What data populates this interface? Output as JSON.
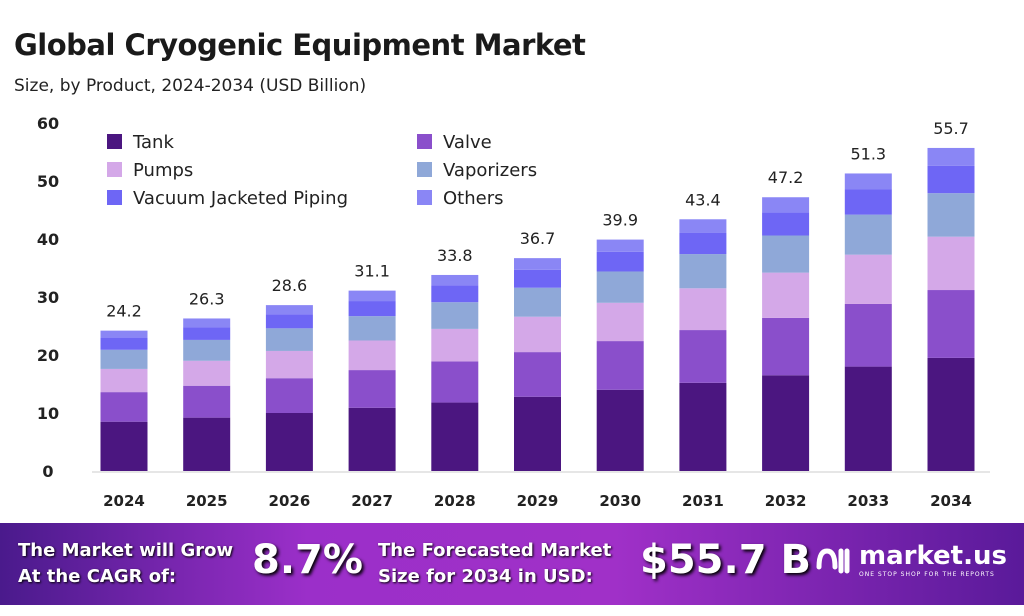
{
  "chart_data": {
    "type": "bar",
    "stacked": true,
    "title": "Global Cryogenic Equipment Market",
    "subtitle": "Size, by Product, 2024-2034 (USD Billion)",
    "categories": [
      "2024",
      "2025",
      "2026",
      "2027",
      "2028",
      "2029",
      "2030",
      "2031",
      "2032",
      "2033",
      "2034"
    ],
    "totals": [
      "24.2",
      "26.3",
      "28.6",
      "31.1",
      "33.8",
      "36.7",
      "39.9",
      "43.4",
      "47.2",
      "51.3",
      "55.7"
    ],
    "ylim": [
      0,
      60
    ],
    "yticks": [
      "0",
      "10",
      "20",
      "30",
      "40",
      "50",
      "60"
    ],
    "grid": false,
    "legend_position": "top-left",
    "series": [
      {
        "name": "Tank",
        "color": "#4b1680",
        "values": [
          8.5,
          9.2,
          10.0,
          10.9,
          11.8,
          12.8,
          14.0,
          15.2,
          16.5,
          18.0,
          19.5
        ]
      },
      {
        "name": "Valve",
        "color": "#8a4fcb",
        "values": [
          5.1,
          5.5,
          6.0,
          6.5,
          7.1,
          7.7,
          8.4,
          9.1,
          9.9,
          10.8,
          11.7
        ]
      },
      {
        "name": "Pumps",
        "color": "#d4a8e8",
        "values": [
          4.0,
          4.3,
          4.7,
          5.1,
          5.6,
          6.1,
          6.6,
          7.2,
          7.8,
          8.5,
          9.2
        ]
      },
      {
        "name": "Vaporizers",
        "color": "#8fa8d8",
        "values": [
          3.3,
          3.6,
          3.9,
          4.2,
          4.6,
          5.0,
          5.4,
          5.9,
          6.4,
          6.9,
          7.5
        ]
      },
      {
        "name": "Vacuum Jacketed Piping",
        "color": "#6e66f5",
        "values": [
          2.1,
          2.2,
          2.4,
          2.6,
          2.9,
          3.1,
          3.4,
          3.7,
          4.0,
          4.4,
          4.7
        ]
      },
      {
        "name": "Others",
        "color": "#8a86f5",
        "values": [
          1.2,
          1.5,
          1.6,
          1.8,
          1.8,
          2.0,
          2.1,
          2.3,
          2.6,
          2.7,
          3.1
        ]
      }
    ]
  },
  "banner": {
    "cagr_label_1": "The Market will Grow",
    "cagr_label_2": "At the CAGR of:",
    "cagr": "8.7%",
    "forecast_label_1": "The Forecasted Market",
    "forecast_label_2": "Size for 2034 in USD:",
    "forecast": "$55.7 B",
    "logo": "market.us",
    "logo_tagline": "ONE STOP SHOP FOR THE REPORTS"
  }
}
